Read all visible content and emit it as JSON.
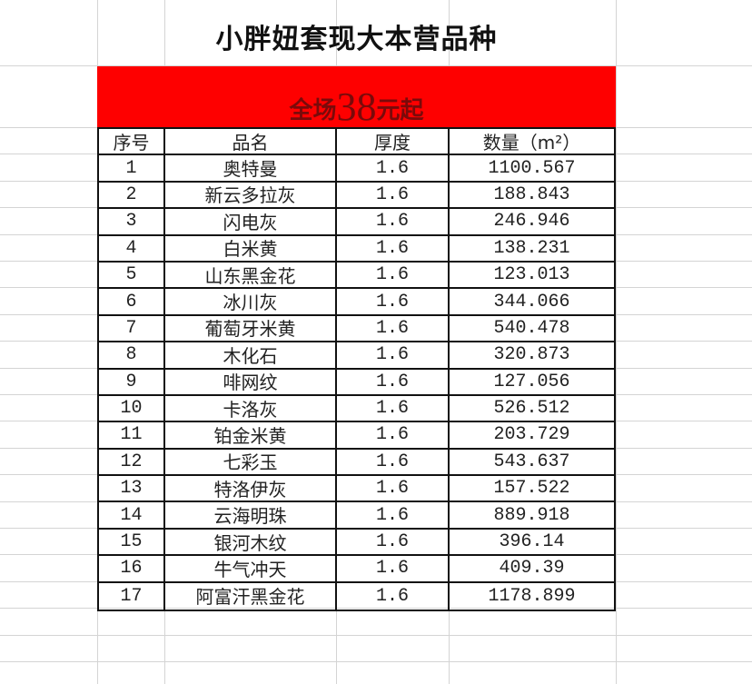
{
  "sheet": {
    "title": "小胖妞套现大本营品种",
    "banner": {
      "prefix": "全场",
      "price": "38",
      "suffix": "元起",
      "background_color": "#fe0000",
      "text_color": "#7a0a0a"
    },
    "columns": [
      "序号",
      "品名",
      "厚度",
      "数量（m²）"
    ],
    "rows": [
      [
        "1",
        "奥特曼",
        "1.6",
        "1100.567"
      ],
      [
        "2",
        "新云多拉灰",
        "1.6",
        "188.843"
      ],
      [
        "3",
        "闪电灰",
        "1.6",
        "246.946"
      ],
      [
        "4",
        "白米黄",
        "1.6",
        "138.231"
      ],
      [
        "5",
        "山东黑金花",
        "1.6",
        "123.013"
      ],
      [
        "6",
        "冰川灰",
        "1.6",
        "344.066"
      ],
      [
        "7",
        "葡萄牙米黄",
        "1.6",
        "540.478"
      ],
      [
        "8",
        "木化石",
        "1.6",
        "320.873"
      ],
      [
        "9",
        "啡网纹",
        "1.6",
        "127.056"
      ],
      [
        "10",
        "卡洛灰",
        "1.6",
        "526.512"
      ],
      [
        "11",
        "铂金米黄",
        "1.6",
        "203.729"
      ],
      [
        "12",
        "七彩玉",
        "1.6",
        "543.637"
      ],
      [
        "13",
        "特洛伊灰",
        "1.6",
        "157.522"
      ],
      [
        "14",
        "云海明珠",
        "1.6",
        "889.918"
      ],
      [
        "15",
        "银河木纹",
        "1.6",
        "396.14"
      ],
      [
        "16",
        "牛气冲天",
        "1.6",
        "409.39"
      ],
      [
        "17",
        "阿富汗黑金花",
        "1.6",
        "1178.899"
      ]
    ]
  }
}
